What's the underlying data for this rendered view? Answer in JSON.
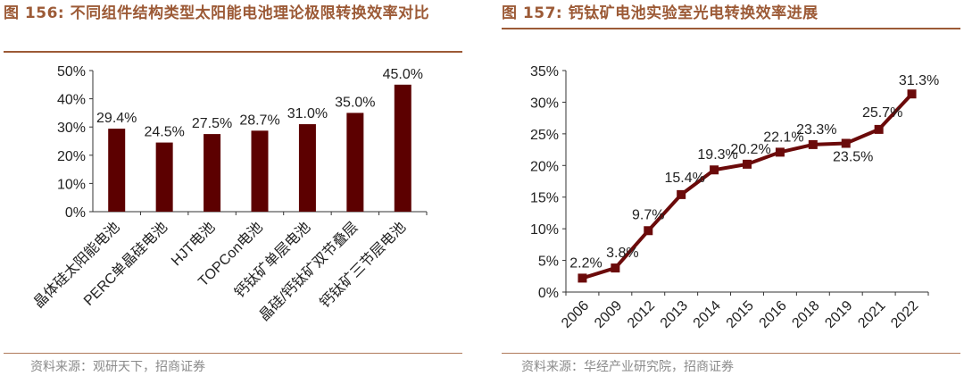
{
  "left": {
    "figure_label": "图 156:",
    "title": "不同组件结构类型太阳能电池理论极限转换效率对比",
    "source": "资料来源：观研天下，招商证券"
  },
  "right": {
    "figure_label": "图 157:",
    "title": "钙钛矿电池实验室光电转换效率进展",
    "source": "资料来源：华经产业研究院，招商证券"
  },
  "chart_data": [
    {
      "type": "bar",
      "categories": [
        "晶体硅太阳能电池",
        "PERC单晶硅电池",
        "HJT电池",
        "TOPCon电池",
        "钙钛矿单层电池",
        "晶硅/钙钛矿双节叠层",
        "钙钛矿三节层电池"
      ],
      "values": [
        29.4,
        24.5,
        27.5,
        28.7,
        31.0,
        35.0,
        45.0
      ],
      "value_labels": [
        "29.4%",
        "24.5%",
        "27.5%",
        "28.7%",
        "31.0%",
        "35.0%",
        "45.0%"
      ],
      "ylim": [
        0,
        50
      ],
      "yticks": [
        "0%",
        "10%",
        "20%",
        "30%",
        "40%",
        "50%"
      ],
      "color": "#5c0000",
      "grid": false
    },
    {
      "type": "line",
      "x": [
        "2006",
        "2009",
        "2012",
        "2013",
        "2014",
        "2015",
        "2016",
        "2018",
        "2019",
        "2021",
        "2022"
      ],
      "values": [
        2.2,
        3.8,
        9.7,
        15.4,
        19.3,
        20.2,
        22.1,
        23.3,
        23.5,
        25.7,
        31.3
      ],
      "value_labels": [
        "2.2%",
        "3.8%",
        "9.7%",
        "15.4%",
        "19.3%",
        "20.2%",
        "22.1%",
        "23.3%",
        "23.5%",
        "25.7%",
        "31.3%"
      ],
      "ylim": [
        0,
        35
      ],
      "yticks": [
        "0%",
        "5%",
        "10%",
        "15%",
        "20%",
        "25%",
        "30%",
        "35%"
      ],
      "color": "#6b0a0a",
      "marker": "square",
      "grid": false
    }
  ]
}
